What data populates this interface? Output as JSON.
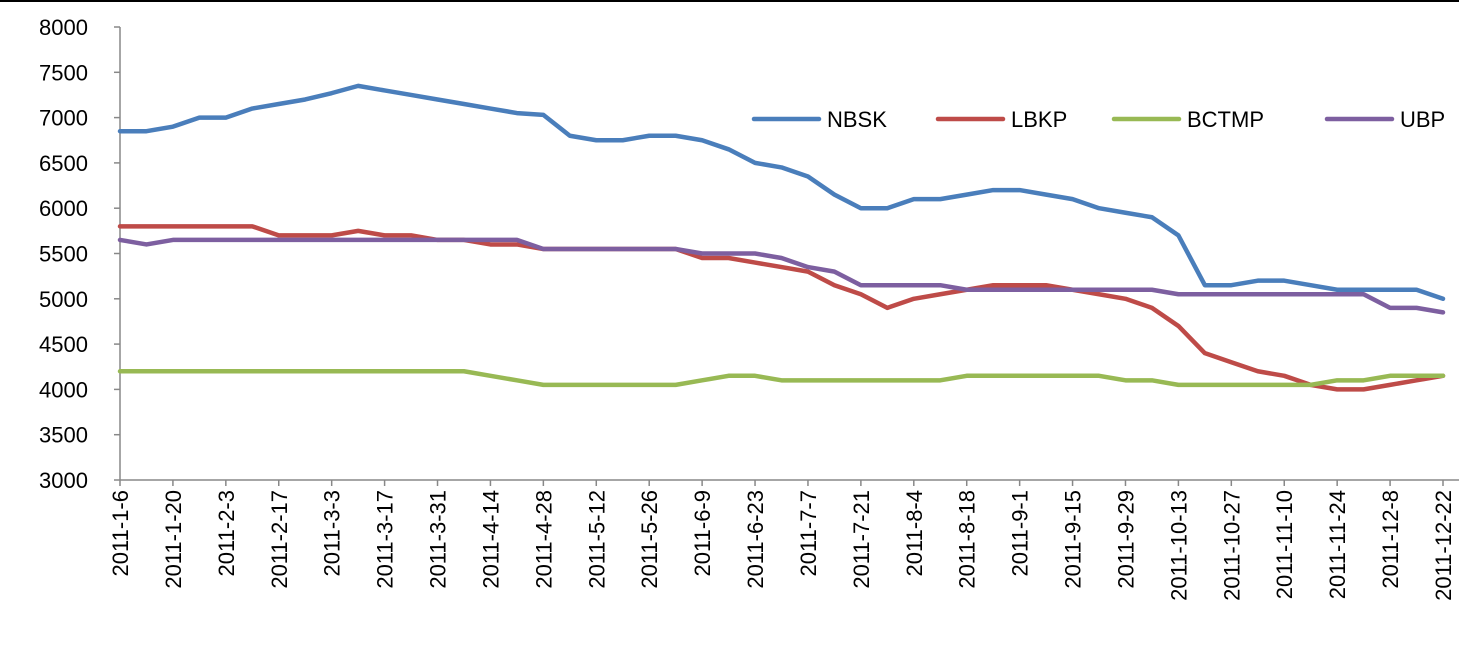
{
  "chart_data": {
    "type": "line",
    "categories": [
      "2011-1-6",
      null,
      "2011-1-20",
      null,
      "2011-2-3",
      null,
      "2011-2-17",
      null,
      "2011-3-3",
      null,
      "2011-3-17",
      null,
      "2011-3-31",
      null,
      "2011-4-14",
      null,
      "2011-4-28",
      null,
      "2011-5-12",
      null,
      "2011-5-26",
      null,
      "2011-6-9",
      null,
      "2011-6-23",
      null,
      "2011-7-7",
      null,
      "2011-7-21",
      null,
      "2011-8-4",
      null,
      "2011-8-18",
      null,
      "2011-9-1",
      null,
      "2011-9-15",
      null,
      "2011-9-29",
      null,
      "2011-10-13",
      null,
      "2011-10-27",
      null,
      "2011-11-10",
      null,
      "2011-11-24",
      null,
      "2011-12-8",
      null,
      "2011-12-22"
    ],
    "series": [
      {
        "name": "NBSK",
        "color": "#4a7ebb",
        "values": [
          6850,
          6850,
          6900,
          7000,
          7000,
          7100,
          7150,
          7200,
          7270,
          7350,
          7300,
          7250,
          7200,
          7150,
          7100,
          7050,
          7030,
          6800,
          6750,
          6750,
          6800,
          6800,
          6750,
          6650,
          6500,
          6450,
          6350,
          6150,
          6000,
          6000,
          6100,
          6100,
          6150,
          6200,
          6200,
          6150,
          6100,
          6000,
          5950,
          5900,
          5700,
          5150,
          5150,
          5200,
          5200,
          5150,
          5100,
          5100,
          5100,
          5100,
          5000
        ]
      },
      {
        "name": "LBKP",
        "color": "#be4b48",
        "values": [
          5800,
          5800,
          5800,
          5800,
          5800,
          5800,
          5700,
          5700,
          5700,
          5750,
          5700,
          5700,
          5650,
          5650,
          5600,
          5600,
          5550,
          5550,
          5550,
          5550,
          5550,
          5550,
          5450,
          5450,
          5400,
          5350,
          5300,
          5150,
          5050,
          4900,
          5000,
          5050,
          5100,
          5150,
          5150,
          5150,
          5100,
          5050,
          5000,
          4900,
          4700,
          4400,
          4300,
          4200,
          4150,
          4050,
          4000,
          4000,
          4050,
          4100,
          4150
        ]
      },
      {
        "name": "BCTMP",
        "color": "#98b954",
        "values": [
          4200,
          4200,
          4200,
          4200,
          4200,
          4200,
          4200,
          4200,
          4200,
          4200,
          4200,
          4200,
          4200,
          4200,
          4150,
          4100,
          4050,
          4050,
          4050,
          4050,
          4050,
          4050,
          4100,
          4150,
          4150,
          4100,
          4100,
          4100,
          4100,
          4100,
          4100,
          4100,
          4150,
          4150,
          4150,
          4150,
          4150,
          4150,
          4100,
          4100,
          4050,
          4050,
          4050,
          4050,
          4050,
          4050,
          4100,
          4100,
          4150,
          4150,
          4150
        ]
      },
      {
        "name": "UBP",
        "color": "#7d5fa0",
        "values": [
          5650,
          5600,
          5650,
          5650,
          5650,
          5650,
          5650,
          5650,
          5650,
          5650,
          5650,
          5650,
          5650,
          5650,
          5650,
          5650,
          5550,
          5550,
          5550,
          5550,
          5550,
          5550,
          5500,
          5500,
          5500,
          5450,
          5350,
          5300,
          5150,
          5150,
          5150,
          5150,
          5100,
          5100,
          5100,
          5100,
          5100,
          5100,
          5100,
          5100,
          5050,
          5050,
          5050,
          5050,
          5050,
          5050,
          5050,
          5050,
          4900,
          4900,
          4850
        ]
      }
    ],
    "ylim": [
      3000,
      8000
    ],
    "yticks": [
      3000,
      3500,
      4000,
      4500,
      5000,
      5500,
      6000,
      6500,
      7000,
      7500,
      8000
    ],
    "legend": "upper right",
    "grid": false
  }
}
